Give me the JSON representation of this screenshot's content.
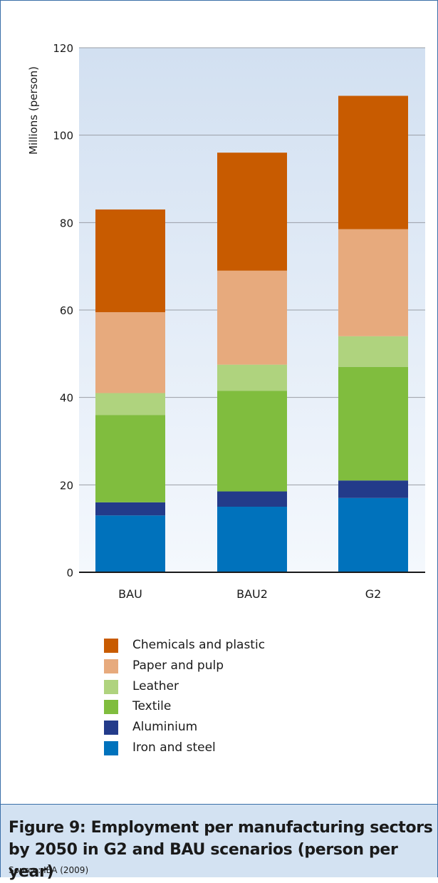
{
  "chart_data": {
    "type": "bar",
    "stacked": true,
    "ylabel": "Millions (person)",
    "ylim": [
      0,
      120
    ],
    "yticks": [
      0,
      20,
      40,
      60,
      80,
      100,
      120
    ],
    "categories": [
      "BAU",
      "BAU2",
      "G2"
    ],
    "series": [
      {
        "name": "Iron and steel",
        "color": "#0072bc",
        "values": [
          13,
          15,
          17
        ]
      },
      {
        "name": "Aluminium",
        "color": "#233b8a",
        "values": [
          3,
          3.5,
          4
        ]
      },
      {
        "name": "Textile",
        "color": "#80bd3e",
        "values": [
          20,
          23,
          26
        ]
      },
      {
        "name": "Leather",
        "color": "#afd37e",
        "values": [
          5,
          6,
          7
        ]
      },
      {
        "name": "Paper and pulp",
        "color": "#e7aa7d",
        "values": [
          18.5,
          21.5,
          24.5
        ]
      },
      {
        "name": "Chemicals and plastic",
        "color": "#c85b00",
        "values": [
          23.5,
          27,
          30.5
        ]
      }
    ],
    "legend_order": [
      "Chemicals and plastic",
      "Paper and pulp",
      "Leather",
      "Textile",
      "Aluminium",
      "Iron and steel"
    ],
    "grid": true,
    "legend_position": "bottom"
  },
  "caption": {
    "title": "Figure 9: Employment per manufacturing sectors\nby 2050 in G2 and BAU scenarios (person per year)",
    "source": "Source: IEA (2009)"
  }
}
